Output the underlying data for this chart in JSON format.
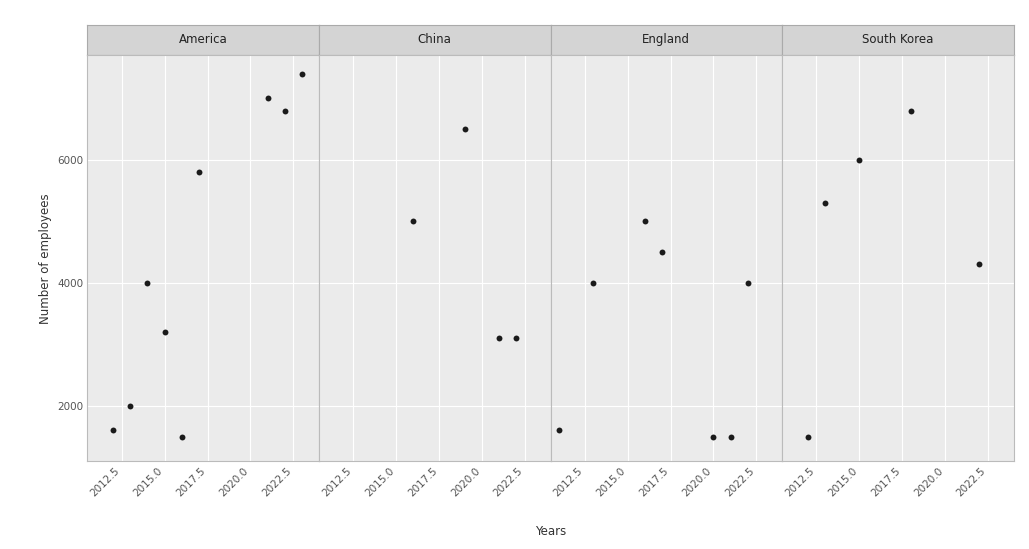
{
  "panels": [
    {
      "label": "America",
      "x": [
        2012,
        2013,
        2014,
        2015,
        2016,
        2017,
        2021,
        2022,
        2023
      ],
      "y": [
        1600,
        2000,
        4000,
        3200,
        1500,
        5800,
        7000,
        6800,
        7400
      ]
    },
    {
      "label": "China",
      "x": [
        2016,
        2019,
        2021,
        2022
      ],
      "y": [
        5000,
        6500,
        3100,
        3100
      ]
    },
    {
      "label": "England",
      "x": [
        2011,
        2013,
        2016,
        2017,
        2020,
        2021,
        2022
      ],
      "y": [
        1600,
        4000,
        5000,
        4500,
        1500,
        1500,
        4000
      ]
    },
    {
      "label": "South Korea",
      "x": [
        2012,
        2013,
        2015,
        2018,
        2022
      ],
      "y": [
        1500,
        5300,
        6000,
        6800,
        4300
      ]
    }
  ],
  "ylabel": "Number of employees",
  "xlabel": "Years",
  "ylim": [
    1100,
    7700
  ],
  "yticks": [
    2000,
    4000,
    6000
  ],
  "xlim": [
    2010.5,
    2024.0
  ],
  "xticks": [
    2012.5,
    2015.0,
    2017.5,
    2020.0,
    2022.5
  ],
  "xtick_labels": [
    "2012.5",
    "2015.0",
    "2017.5",
    "2020.0",
    "2022.5"
  ],
  "fig_bg": "#ffffff",
  "panel_bg": "#ebebeb",
  "grid_color": "#ffffff",
  "header_bg": "#d4d4d4",
  "header_border": "#aaaaaa",
  "dot_color": "#1a1a1a",
  "dot_size": 18,
  "border_color": "#bbbbbb",
  "strip_fontsize": 8.5,
  "axis_label_fontsize": 8.5,
  "tick_fontsize": 7.5
}
